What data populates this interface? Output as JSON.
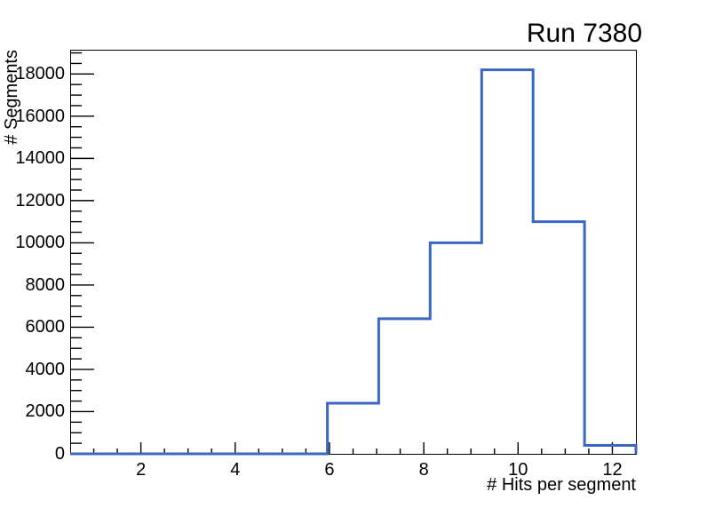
{
  "window": {
    "background_color": "#ffffff",
    "text_color": "#000000"
  },
  "chart_data": {
    "type": "bar",
    "subtype": "step-histogram",
    "title": "Run 7380",
    "xlabel": "# Hits per segment",
    "ylabel": "# Segments",
    "xlim": [
      0.5,
      12.5
    ],
    "ylim": [
      0,
      19150
    ],
    "n_bins": 11,
    "bin_edges": [
      0.5,
      1.591,
      2.682,
      3.773,
      4.864,
      5.955,
      7.045,
      8.136,
      9.227,
      10.318,
      11.409,
      12.5
    ],
    "counts": [
      0,
      0,
      0,
      0,
      0,
      2400,
      6400,
      10000,
      18200,
      11000,
      400
    ],
    "x_major_ticks": [
      2,
      4,
      6,
      8,
      10,
      12
    ],
    "x_major_tick_labels": [
      "2",
      "4",
      "6",
      "8",
      "10",
      "12"
    ],
    "x_minor_tick_step": 0.5,
    "y_major_ticks": [
      0,
      2000,
      4000,
      6000,
      8000,
      10000,
      12000,
      14000,
      16000,
      18000
    ],
    "y_major_tick_labels": [
      "0",
      "2000",
      "4000",
      "6000",
      "8000",
      "10000",
      "12000",
      "14000",
      "16000",
      "18000"
    ],
    "y_minor_tick_step": 500,
    "grid": false,
    "legend": null,
    "line_color": "#3a66c4",
    "axis_color": "#000000",
    "ticks_direction": "in"
  }
}
